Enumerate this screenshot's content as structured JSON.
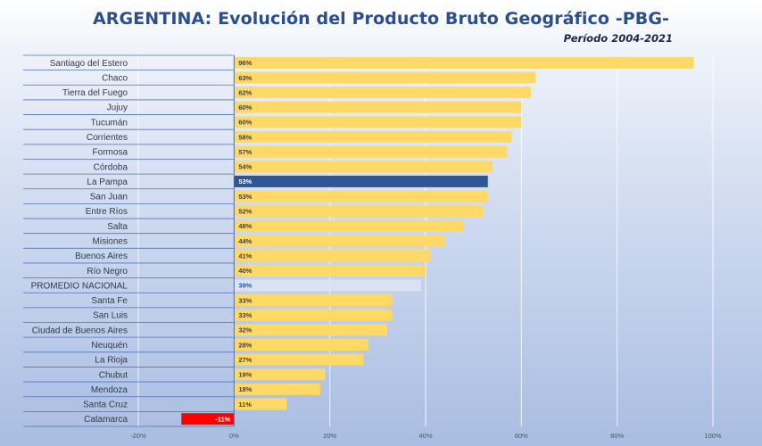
{
  "chart_data": {
    "type": "bar",
    "orientation": "horizontal",
    "title": "ARGENTINA: Evolución del Producto Bruto Geográfico -PBG-",
    "subtitle": "Período 2004-2021",
    "categories": [
      "Santiago del Estero",
      "Chaco",
      "Tierra del Fuego",
      "Jujuy",
      "Tucumán",
      "Corrientes",
      "Formosa",
      "Córdoba",
      "La Pampa",
      "San Juan",
      "Entre Ríos",
      "Salta",
      "Misiones",
      "Buenos Aires",
      "Río Negro",
      "PROMEDIO NACIONAL",
      "Santa Fe",
      "San Luis",
      "Ciudad de Buenos Aires",
      "Neuquén",
      "La Rioja",
      "Chubut",
      "Mendoza",
      "Santa Cruz",
      "Catamarca"
    ],
    "values": [
      96,
      63,
      62,
      60,
      60,
      58,
      57,
      54,
      53,
      53,
      52,
      48,
      44,
      41,
      40,
      39,
      33,
      33,
      32,
      28,
      27,
      19,
      18,
      11,
      -11
    ],
    "value_labels": [
      "96%",
      "63%",
      "62%",
      "60%",
      "60%",
      "58%",
      "57%",
      "54%",
      "53%",
      "53%",
      "52%",
      "48%",
      "44%",
      "41%",
      "40%",
      "39%",
      "33%",
      "33%",
      "32%",
      "28%",
      "27%",
      "19%",
      "18%",
      "11%",
      "-11%"
    ],
    "xlim": [
      -20,
      100
    ],
    "xticks": [
      -20,
      0,
      20,
      40,
      60,
      80,
      100
    ],
    "xtick_labels": [
      "-20%",
      "0%",
      "20%",
      "40%",
      "60%",
      "80%",
      "100%"
    ],
    "grid": true,
    "colors": {
      "default": "#ffd966",
      "highlight": "#2f5597",
      "average": "#dae3f3",
      "negative": "#ff0000",
      "title": "#2b4f8c"
    },
    "highlight_category": "La Pampa",
    "average_category": "PROMEDIO NACIONAL",
    "negative_category": "Catamarca"
  }
}
